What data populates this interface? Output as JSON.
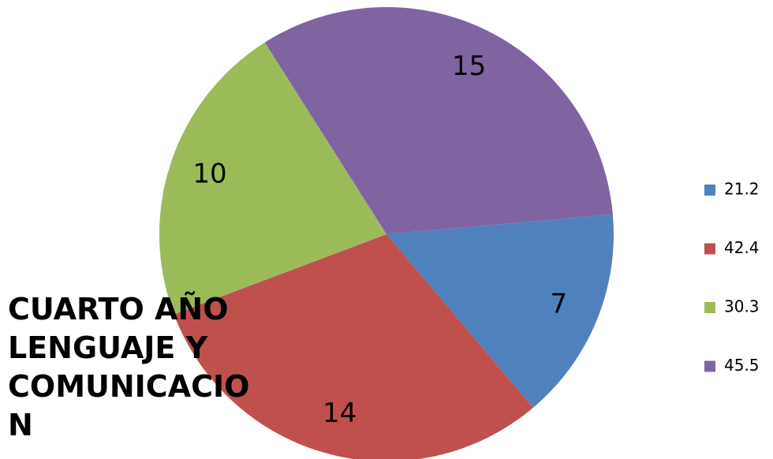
{
  "chart_data": {
    "type": "pie",
    "title": "CUARTO AÑO LENGUAJE Y COMUNICACION",
    "categories": [
      "21.2",
      "42.4",
      "30.3",
      "45.5"
    ],
    "values": [
      7,
      14,
      10,
      15
    ],
    "colors": [
      "#4f81bd",
      "#c0504d",
      "#9bbb59",
      "#8064a2"
    ],
    "legend": "right"
  }
}
